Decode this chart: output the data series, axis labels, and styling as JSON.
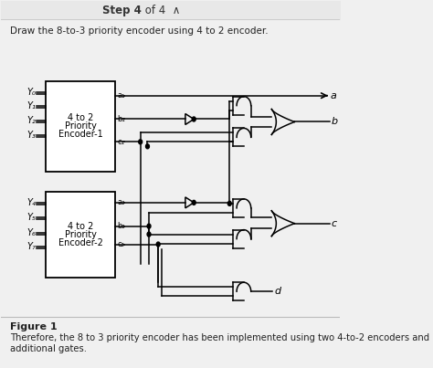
{
  "title_bold": "Step 4",
  "title_rest": " of 4  ∧",
  "subtitle": "Draw the 8-to-3 priority encoder using 4 to 2 encoder.",
  "figure_label": "Figure 1",
  "caption_line1": "Therefore, the 8 to 3 priority encoder has been implemented using two 4-to-2 encoders and",
  "caption_line2": "additional gates.",
  "bg_color": "#f0f0f0",
  "enc1_label": [
    "4 to 2",
    "Priority",
    "Encoder-1"
  ],
  "enc2_label": [
    "4 to 2",
    "Priority",
    "Encoder-2"
  ],
  "inputs1": [
    "Y₀",
    "Y₁",
    "Y₂",
    "Y₃"
  ],
  "inputs2": [
    "Y₄",
    "Y₅",
    "Y₆",
    "Y₇"
  ],
  "out_labels": [
    "a",
    "b",
    "c",
    "d"
  ]
}
